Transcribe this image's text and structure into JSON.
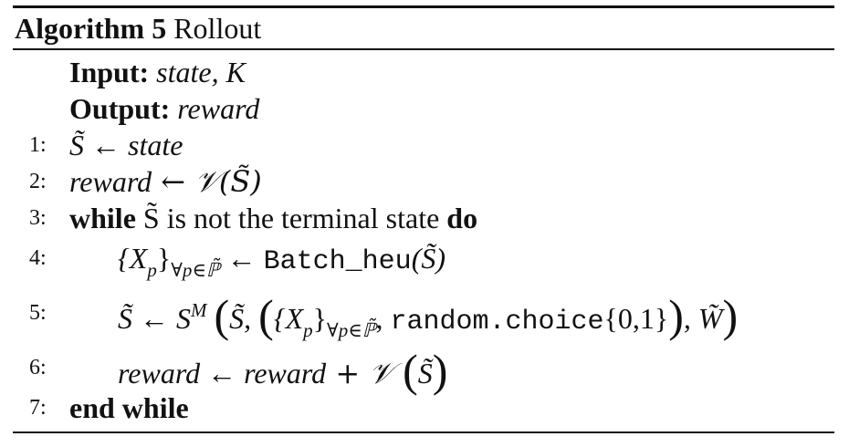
{
  "algorithm": {
    "caption_label": "Algorithm 5",
    "caption_title": "Rollout",
    "input_label": "Input:",
    "input_value": "state, K",
    "output_label": "Output:",
    "output_value": "reward",
    "lines": [
      {
        "num": "1:",
        "parts": [
          "S̃ ← ",
          "state"
        ]
      },
      {
        "num": "2:",
        "parts": [
          "reward",
          " ← 𝒱(S̃)"
        ]
      },
      {
        "num": "3:",
        "parts": [
          "while",
          " S̃ is not the terminal state ",
          "do"
        ]
      },
      {
        "num": "4:",
        "parts": [
          "{X",
          "p",
          "}",
          "∀p∈ℙ̃",
          " ← ",
          "Batch_heu",
          "(S̃)"
        ]
      },
      {
        "num": "5:",
        "parts": [
          "S̃ ← S",
          "M",
          "S̃, ",
          "{X",
          "p",
          "}",
          "∀p∈ℙ̃",
          ", ",
          "random.choice",
          "{0,1}",
          ", W̃"
        ]
      },
      {
        "num": "6:",
        "parts": [
          "reward",
          " ← ",
          "reward",
          " + 𝒱 ",
          "S̃"
        ]
      },
      {
        "num": "7:",
        "parts": [
          "end while"
        ]
      }
    ]
  }
}
